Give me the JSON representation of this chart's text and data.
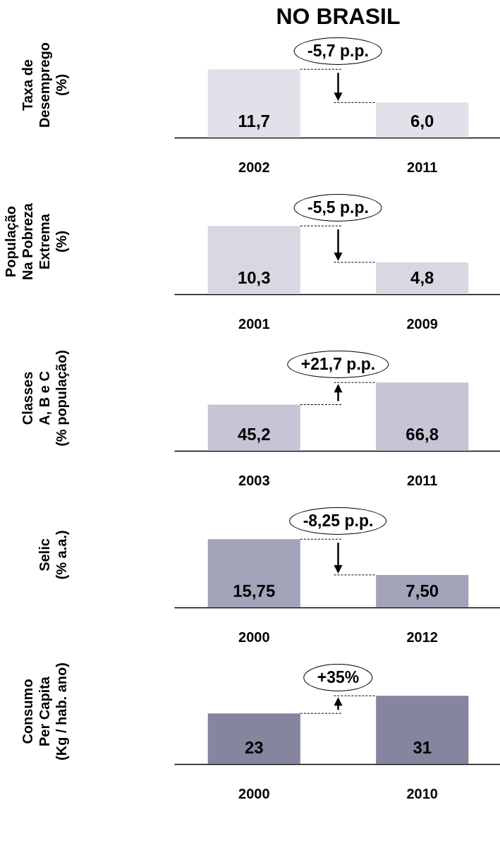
{
  "chart_data": [
    {
      "type": "bar",
      "title": "NO BRASIL",
      "ylabel": "Taxa de\nDesemprego\n(%)",
      "categories": [
        "2002",
        "2011"
      ],
      "values": [
        11.7,
        6.0
      ],
      "value_labels": [
        "11,7",
        "6,0"
      ],
      "color": "#e1e1ea",
      "annotations": [
        "-5,7 p.p."
      ],
      "tick_labels": "x"
    },
    {
      "type": "bar",
      "ylabel": "População\nNa Pobreza\nExtrema\n(%)",
      "categories": [
        "2001",
        "2009"
      ],
      "values": [
        10.3,
        4.8
      ],
      "value_labels": [
        "10,3",
        "4,8"
      ],
      "color": "#d8d8e2",
      "annotations": [
        "-5,5 p.p."
      ],
      "tick_labels": "x"
    },
    {
      "type": "bar",
      "ylabel": "Classes\nA, B e C\n(% população)",
      "categories": [
        "2003",
        "2011"
      ],
      "values": [
        45.2,
        66.8
      ],
      "value_labels": [
        "45,2",
        "66,8"
      ],
      "color": "#c5c5d5",
      "annotations": [
        "+21,7 p.p."
      ],
      "tick_labels": "x"
    },
    {
      "type": "bar",
      "ylabel": "Selic\n(% a.a.)",
      "categories": [
        "2000",
        "2012"
      ],
      "values": [
        15.75,
        7.5
      ],
      "value_labels": [
        "15,75",
        "7,50"
      ],
      "color": "#a3a3ba",
      "annotations": [
        "-8,25 p.p."
      ],
      "tick_labels": "x"
    },
    {
      "type": "bar",
      "ylabel": "Consumo\nPer Capita\n(Kg / hab. ano)",
      "categories": [
        "2000",
        "2010"
      ],
      "values": [
        23,
        31
      ],
      "value_labels": [
        "23",
        "31"
      ],
      "color": "#85859f",
      "annotations": [
        "+35%"
      ],
      "tick_labels": "x"
    }
  ]
}
